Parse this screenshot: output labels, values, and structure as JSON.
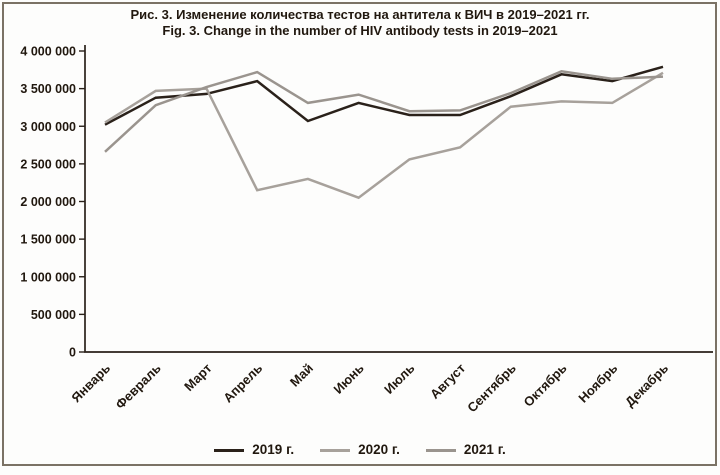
{
  "figure": {
    "title_ru": "Рис. 3. Изменение количества тестов на антитела к ВИЧ в 2019–2021 гг.",
    "title_en": "Fig. 3. Change in the number of HIV antibody tests in 2019–2021"
  },
  "colors": {
    "background": "#fdfdfc",
    "frame_border": "#7b7265",
    "axis": "#2a211a",
    "text": "#21180f",
    "series_2019": "#2a211a",
    "series_2020": "#a7a19b",
    "series_2021": "#9a948e"
  },
  "chart_data": {
    "type": "line",
    "title": "Рис. 3. Изменение количества тестов на антитела к ВИЧ в 2019–2021 гг. / Fig. 3. Change in the number of HIV antibody tests in 2019–2021",
    "xlabel": "",
    "ylabel": "",
    "categories": [
      "Январь",
      "Февраль",
      "Март",
      "Апрель",
      "Май",
      "Июнь",
      "Июль",
      "Август",
      "Сентябрь",
      "Октябрь",
      "Ноябрь",
      "Декабрь"
    ],
    "series": [
      {
        "name": "2019 г.",
        "color_key": "series_2019",
        "values": [
          3020000,
          3380000,
          3430000,
          3600000,
          3070000,
          3310000,
          3150000,
          3150000,
          3400000,
          3690000,
          3600000,
          3790000
        ]
      },
      {
        "name": "2020 г.",
        "color_key": "series_2020",
        "values": [
          3050000,
          3470000,
          3500000,
          2150000,
          2300000,
          2050000,
          2560000,
          2720000,
          3260000,
          3330000,
          3310000,
          3710000
        ]
      },
      {
        "name": "2021 г.",
        "color_key": "series_2021",
        "values": [
          2660000,
          3280000,
          3520000,
          3720000,
          3310000,
          3420000,
          3200000,
          3210000,
          3440000,
          3730000,
          3630000,
          3660000
        ]
      }
    ],
    "ylim": [
      0,
      4000000
    ],
    "ytick_step": 500000,
    "ytick_labels": [
      "0",
      "500 000",
      "1 000 000",
      "1 500 000",
      "2 000 000",
      "2 500 000",
      "3 000 000",
      "3 500 000",
      "4 000 000"
    ],
    "grid": false,
    "legend_position": "bottom"
  }
}
